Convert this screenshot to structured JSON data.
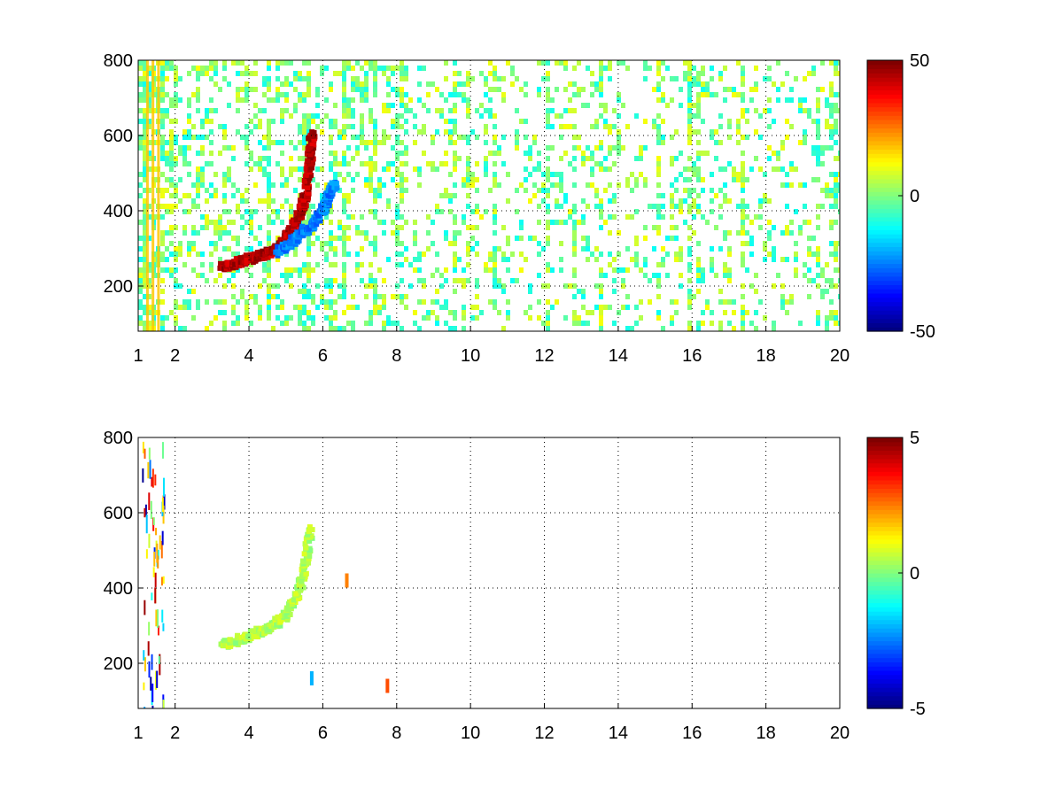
{
  "chart_data": [
    {
      "type": "heatmap",
      "title": "",
      "xlabel": "",
      "ylabel": "",
      "xlim": [
        1,
        20
      ],
      "ylim": [
        80,
        800
      ],
      "x_ticks": [
        1,
        2,
        4,
        6,
        8,
        10,
        12,
        14,
        16,
        18,
        20
      ],
      "y_ticks": [
        200,
        400,
        600,
        800
      ],
      "x_grid": [
        2,
        4,
        6,
        8,
        10,
        12,
        14,
        16,
        18,
        20
      ],
      "y_grid": [
        200,
        400,
        600,
        800
      ],
      "grid": true,
      "colormap": "jet",
      "colorbar": {
        "min": -50,
        "max": 50,
        "ticks": [
          50,
          0,
          -50
        ]
      },
      "features": [
        {
          "kind": "ridge",
          "note": "strong positive curved ridge",
          "points": [
            [
              3.3,
              250
            ],
            [
              3.8,
              265
            ],
            [
              4.2,
              278
            ],
            [
              4.6,
              290
            ],
            [
              5.0,
              325
            ],
            [
              5.3,
              370
            ],
            [
              5.5,
              430
            ],
            [
              5.65,
              520
            ],
            [
              5.7,
              600
            ]
          ],
          "value": 45
        },
        {
          "kind": "ridge",
          "note": "negative trough beside ridge",
          "points": [
            [
              4.8,
              290
            ],
            [
              5.3,
              330
            ],
            [
              5.8,
              370
            ],
            [
              6.1,
              420
            ],
            [
              6.3,
              470
            ]
          ],
          "value": -25
        },
        {
          "kind": "bands",
          "note": "vertical bands near x 1-1.5",
          "x": [
            1.25,
            1.4,
            1.55
          ],
          "value": 18
        }
      ],
      "background_noise_range": [
        -12,
        12
      ]
    },
    {
      "type": "heatmap",
      "title": "",
      "xlabel": "",
      "ylabel": "",
      "xlim": [
        1,
        20
      ],
      "ylim": [
        80,
        800
      ],
      "x_ticks": [
        1,
        2,
        4,
        6,
        8,
        10,
        12,
        14,
        16,
        18,
        20
      ],
      "y_ticks": [
        200,
        400,
        600,
        800
      ],
      "x_grid": [
        2,
        4,
        6,
        8,
        10,
        12,
        14,
        16,
        18,
        20
      ],
      "y_grid": [
        200,
        400,
        600,
        800
      ],
      "grid": true,
      "colormap": "jet",
      "colorbar": {
        "min": -5,
        "max": 5,
        "ticks": [
          5,
          0,
          -5
        ]
      },
      "features": [
        {
          "kind": "ridge",
          "note": "near-zero curved ridge",
          "points": [
            [
              3.3,
              250
            ],
            [
              3.8,
              265
            ],
            [
              4.2,
              280
            ],
            [
              4.6,
              295
            ],
            [
              5.0,
              330
            ],
            [
              5.3,
              380
            ],
            [
              5.5,
              450
            ],
            [
              5.7,
              560
            ]
          ],
          "value": 0.5
        },
        {
          "kind": "spot",
          "x": 6.65,
          "y": 420,
          "value": 2.5
        },
        {
          "kind": "spot",
          "x": 5.7,
          "y": 160,
          "value": -2
        },
        {
          "kind": "spot",
          "x": 7.75,
          "y": 140,
          "value": 3
        }
      ]
    }
  ]
}
